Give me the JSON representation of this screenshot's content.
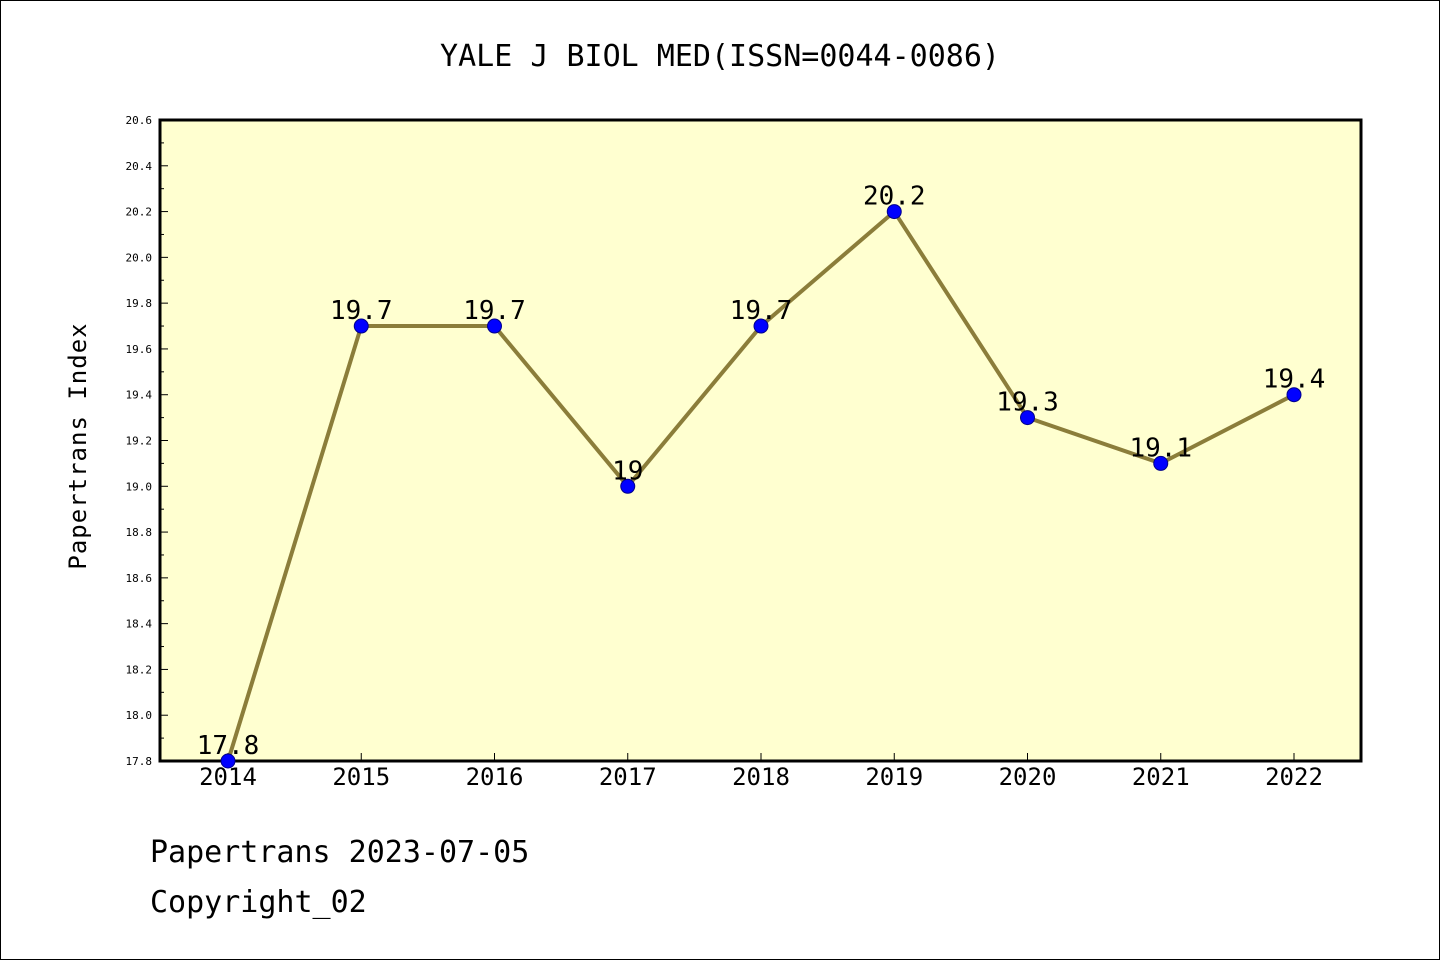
{
  "chart_data": {
    "type": "line",
    "title": "YALE J BIOL MED(ISSN=0044-0086)",
    "xlabel": "",
    "ylabel": "Papertrans Index",
    "categories": [
      "2014",
      "2015",
      "2016",
      "2017",
      "2018",
      "2019",
      "2020",
      "2021",
      "2022"
    ],
    "values": [
      17.8,
      19.7,
      19.7,
      19.0,
      19.7,
      20.2,
      19.3,
      19.1,
      19.4
    ],
    "data_labels": [
      "17.8",
      "19.7",
      "19.7",
      "19",
      "19.7",
      "20.2",
      "19.3",
      "19.1",
      "19.4"
    ],
    "ylim": [
      17.8,
      20.6
    ],
    "yticks": [
      "17.8",
      "18.0",
      "18.2",
      "18.4",
      "18.6",
      "18.8",
      "19.0",
      "19.2",
      "19.4",
      "19.6",
      "19.8",
      "20.0",
      "20.2",
      "20.4",
      "20.6"
    ],
    "grid": false,
    "legend": "none",
    "colors": {
      "plot_background": "#ffffd0",
      "line": "#8b7d3a",
      "marker": "#0000ff",
      "marker_edge": "#00008b",
      "axis": "#000000"
    }
  },
  "footer": {
    "source": "Papertrans 2023-07-05",
    "copyright": "Copyright_02"
  }
}
